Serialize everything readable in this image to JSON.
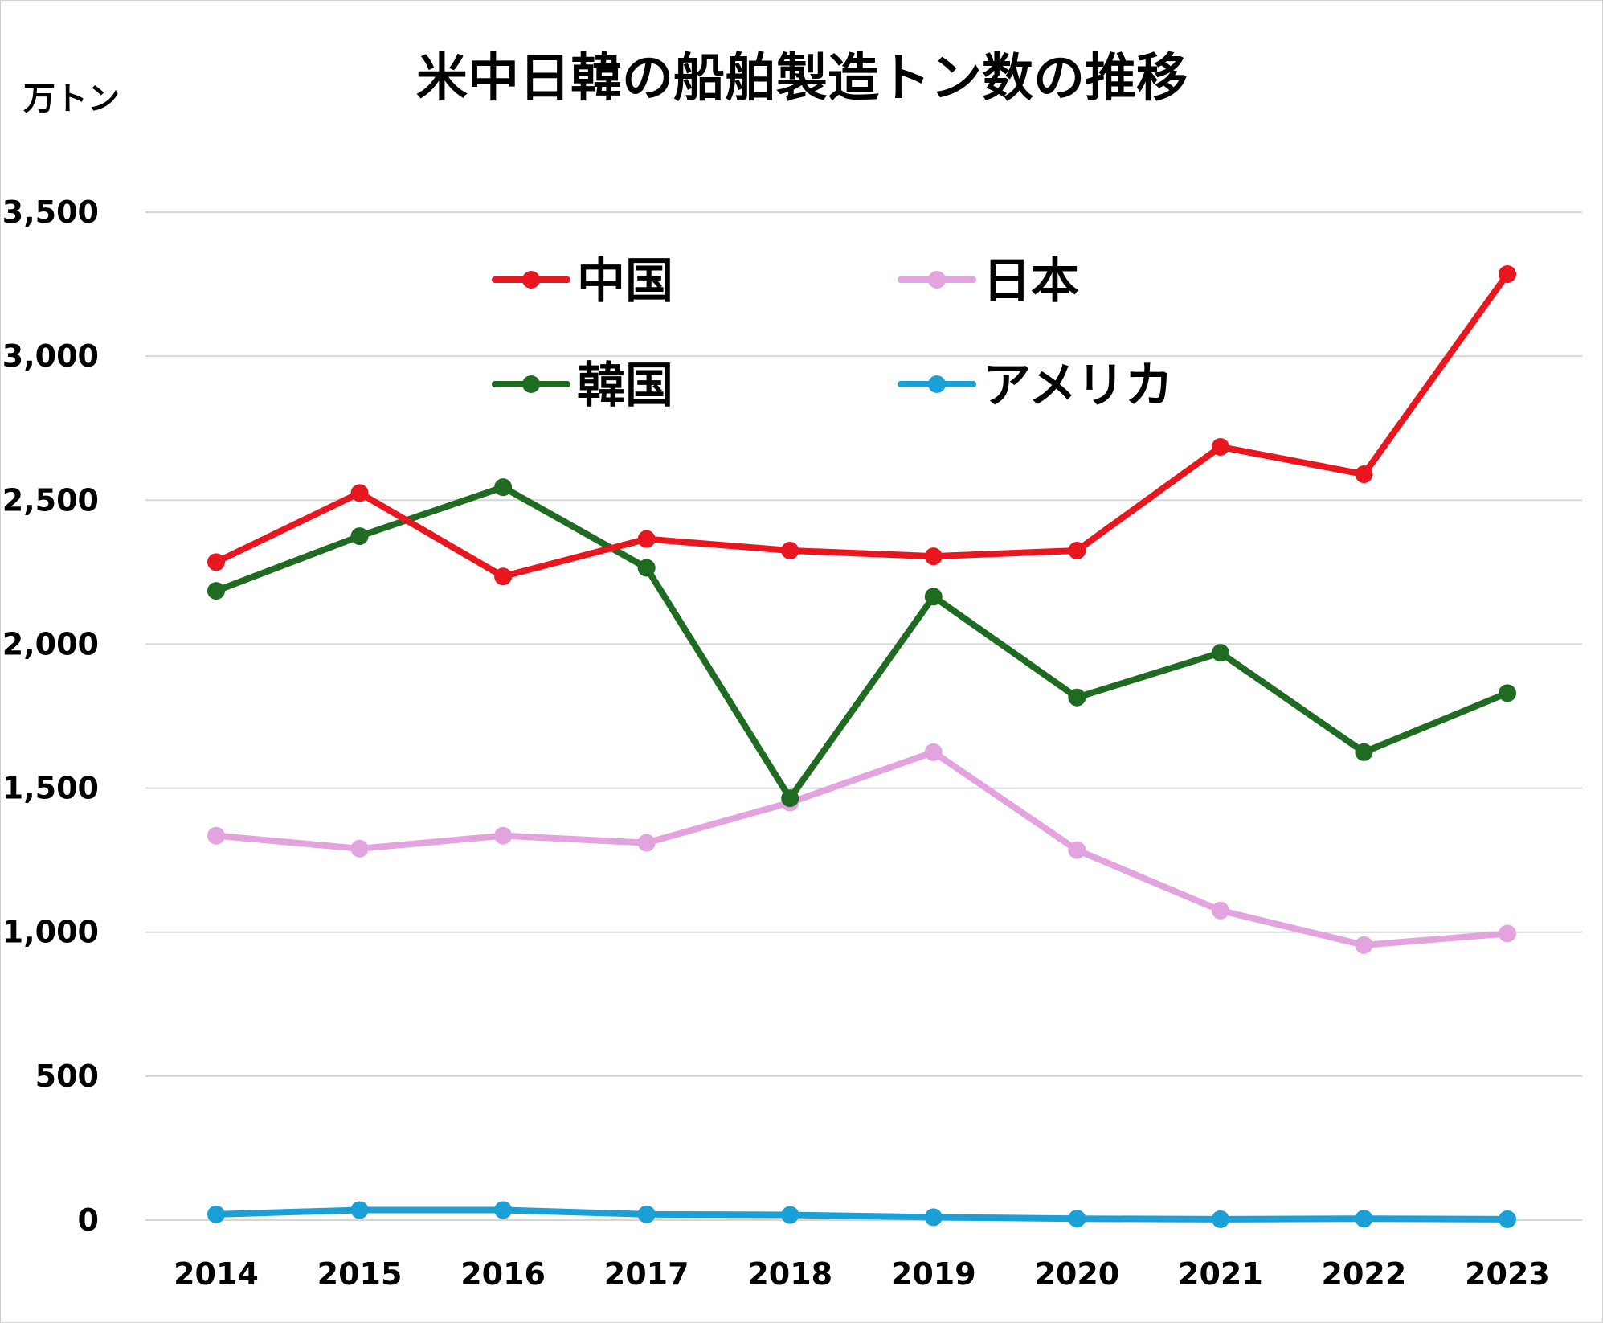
{
  "chart_data": {
    "type": "line",
    "title": "米中日韓の船舶製造トン数の推移",
    "ylabel": "万トン",
    "xlabel": "",
    "x": [
      "2014",
      "2015",
      "2016",
      "2017",
      "2018",
      "2019",
      "2020",
      "2021",
      "2022",
      "2023"
    ],
    "ylim": [
      0,
      3500
    ],
    "yticks": [
      0,
      500,
      1000,
      1500,
      2000,
      2500,
      3000,
      3500
    ],
    "ytick_labels": [
      "0",
      "500",
      "1,000",
      "1,500",
      "2,000",
      "2,500",
      "3,000",
      "3,500"
    ],
    "grid": true,
    "legend_position": "top-center",
    "series": [
      {
        "name": "中国",
        "color": "#e8161e",
        "values": [
          2285,
          2525,
          2235,
          2365,
          2325,
          2305,
          2325,
          2685,
          2590,
          3285
        ]
      },
      {
        "name": "日本",
        "color": "#e3a3df",
        "values": [
          1335,
          1290,
          1335,
          1310,
          1450,
          1625,
          1285,
          1075,
          955,
          995
        ]
      },
      {
        "name": "韓国",
        "color": "#1f6b22",
        "values": [
          2185,
          2375,
          2545,
          2265,
          1465,
          2165,
          1815,
          1970,
          1625,
          1830
        ]
      },
      {
        "name": "アメリカ",
        "color": "#1a9fd6",
        "values": [
          20,
          35,
          35,
          20,
          18,
          10,
          5,
          3,
          5,
          3
        ]
      }
    ]
  }
}
